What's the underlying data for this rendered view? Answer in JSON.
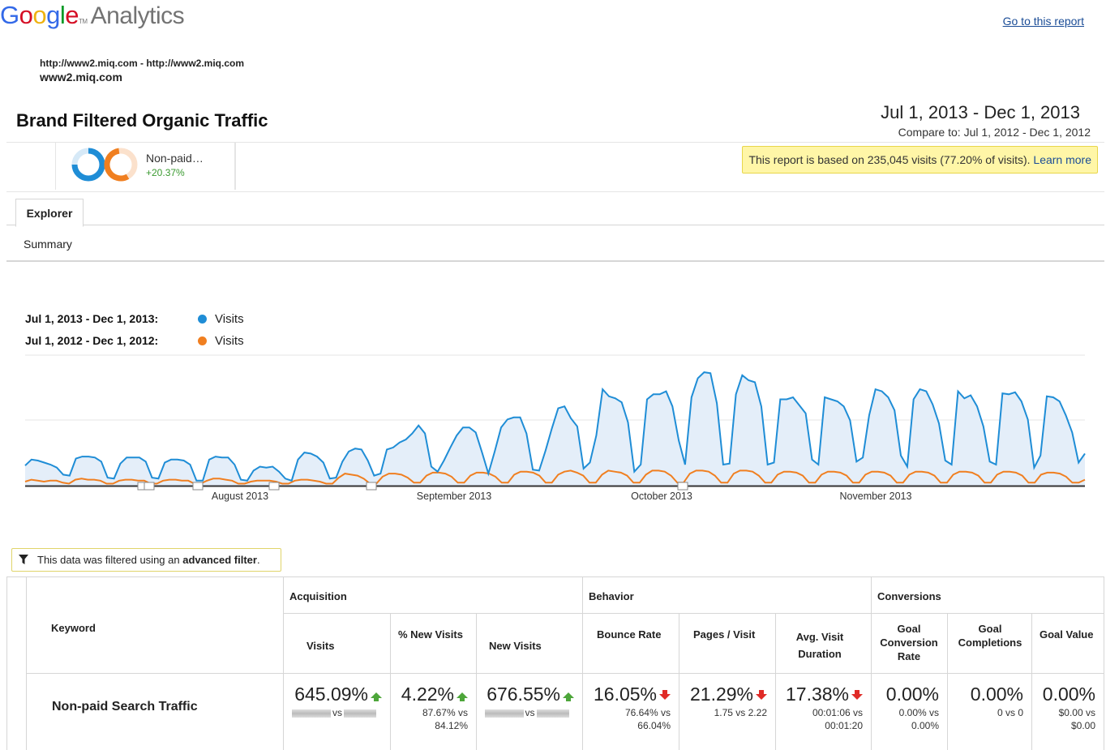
{
  "header": {
    "logo_google": "Google",
    "logo_analytics": "Analytics",
    "go_to_report": "Go to this report",
    "site_url": "http://www2.miq.com - http://www2.miq.com",
    "site_name": "www2.miq.com",
    "report_title": "Brand Filtered Organic Traffic",
    "date_range": "Jul 1, 2013 - Dec 1, 2013",
    "compare_to": "Compare to: Jul 1, 2012 - Dec 1, 2012"
  },
  "segment": {
    "label": "Non-paid…",
    "change": "+20.37%",
    "notice_text": "This report is based on 235,045 visits (77.20% of visits).",
    "notice_link": "Learn more"
  },
  "tabs": {
    "explorer": "Explorer",
    "summary": "Summary"
  },
  "legend": [
    {
      "range": "Jul 1, 2013 - Dec 1, 2013:",
      "series": "Visits",
      "color": "#1f8dd6"
    },
    {
      "range": "Jul 1, 2012 - Dec 1, 2012:",
      "series": "Visits",
      "color": "#f07f20"
    }
  ],
  "chart_data": {
    "type": "line",
    "x_labels": [
      "August 2013",
      "September 2013",
      "October 2013",
      "November 2013"
    ],
    "grid": true,
    "series": [
      {
        "name": "Visits",
        "color": "#1f8dd6",
        "values": [
          20,
          26,
          25,
          23,
          21,
          18,
          11,
          10,
          27,
          29,
          29,
          28,
          24,
          8,
          7,
          22,
          28,
          28,
          28,
          24,
          8,
          7,
          23,
          26,
          26,
          25,
          21,
          5,
          5,
          26,
          29,
          28,
          28,
          21,
          6,
          5,
          15,
          19,
          18,
          19,
          14,
          7,
          5,
          26,
          33,
          32,
          29,
          23,
          7,
          8,
          24,
          34,
          37,
          36,
          25,
          10,
          12,
          36,
          38,
          43,
          46,
          52,
          60,
          52,
          19,
          14,
          25,
          38,
          50,
          58,
          58,
          53,
          33,
          12,
          34,
          58,
          66,
          68,
          68,
          52,
          16,
          15,
          35,
          57,
          77,
          79,
          67,
          59,
          17,
          23,
          50,
          96,
          89,
          87,
          83,
          63,
          14,
          21,
          86,
          91,
          91,
          94,
          79,
          45,
          21,
          88,
          107,
          113,
          112,
          82,
          21,
          22,
          91,
          110,
          105,
          103,
          79,
          21,
          23,
          86,
          86,
          88,
          80,
          72,
          26,
          21,
          88,
          86,
          84,
          79,
          65,
          24,
          28,
          70,
          96,
          94,
          88,
          75,
          30,
          19,
          86,
          96,
          94,
          81,
          62,
          25,
          21,
          94,
          87,
          90,
          79,
          59,
          24,
          21,
          92,
          91,
          93,
          84,
          66,
          18,
          30,
          89,
          88,
          84,
          70,
          53,
          23,
          32
        ]
      },
      {
        "name": "Visits",
        "color": "#f07f20",
        "values": [
          4,
          6,
          5,
          4,
          5,
          5,
          3,
          2,
          6,
          7,
          6,
          6,
          5,
          2,
          2,
          5,
          6,
          6,
          5,
          5,
          2,
          2,
          5,
          6,
          6,
          5,
          5,
          2,
          2,
          5,
          7,
          7,
          6,
          5,
          2,
          2,
          4,
          5,
          5,
          5,
          4,
          2,
          2,
          5,
          6,
          6,
          5,
          4,
          2,
          2,
          8,
          12,
          11,
          10,
          7,
          2,
          2,
          9,
          12,
          12,
          11,
          8,
          3,
          3,
          10,
          13,
          13,
          12,
          9,
          3,
          3,
          10,
          13,
          13,
          12,
          9,
          3,
          3,
          11,
          14,
          14,
          13,
          10,
          3,
          3,
          11,
          14,
          15,
          13,
          10,
          3,
          3,
          11,
          15,
          14,
          13,
          10,
          3,
          3,
          11,
          15,
          15,
          14,
          10,
          3,
          3,
          12,
          15,
          15,
          14,
          10,
          3,
          3,
          12,
          15,
          15,
          14,
          10,
          3,
          3,
          11,
          14,
          14,
          13,
          10,
          3,
          3,
          11,
          14,
          14,
          13,
          10,
          3,
          3,
          11,
          14,
          14,
          13,
          10,
          3,
          3,
          11,
          14,
          14,
          13,
          10,
          3,
          3,
          11,
          14,
          14,
          13,
          10,
          3,
          3,
          11,
          14,
          14,
          13,
          10,
          3,
          3,
          11,
          13,
          13,
          12,
          9,
          3,
          3,
          6
        ]
      }
    ]
  },
  "filter": {
    "prefix": "This data was filtered using an ",
    "bold": "advanced filter",
    "suffix": "."
  },
  "table": {
    "keyword_header": "Keyword",
    "groups": {
      "acquisition": "Acquisition",
      "behavior": "Behavior",
      "conversions": "Conversions"
    },
    "columns": [
      "Visits",
      "% New Visits",
      "New Visits",
      "Bounce Rate",
      "Pages / Visit",
      "Avg. Visit Duration",
      "Goal Conversion Rate",
      "Goal Completions",
      "Goal Value"
    ],
    "row": {
      "keyword": "Non-paid Search Traffic",
      "cells": [
        {
          "big": "645.09%",
          "trend": "up",
          "line1": "vs",
          "line2": "",
          "blurred": true
        },
        {
          "big": "4.22%",
          "trend": "up",
          "line1": "87.67% vs",
          "line2": "84.12%"
        },
        {
          "big": "676.55%",
          "trend": "up",
          "line1": "vs",
          "line2": "",
          "blurred": true
        },
        {
          "big": "16.05%",
          "trend": "down",
          "line1": "76.64% vs",
          "line2": "66.04%"
        },
        {
          "big": "21.29%",
          "trend": "down",
          "line1": "1.75 vs 2.22",
          "line2": ""
        },
        {
          "big": "17.38%",
          "trend": "down",
          "line1": "00:01:06 vs",
          "line2": "00:01:20"
        },
        {
          "big": "0.00%",
          "trend": "",
          "line1": "0.00% vs",
          "line2": "0.00%"
        },
        {
          "big": "0.00%",
          "trend": "",
          "line1": "0 vs 0",
          "line2": ""
        },
        {
          "big": "0.00%",
          "trend": "",
          "line1": "$0.00 vs",
          "line2": "$0.00"
        }
      ]
    }
  }
}
